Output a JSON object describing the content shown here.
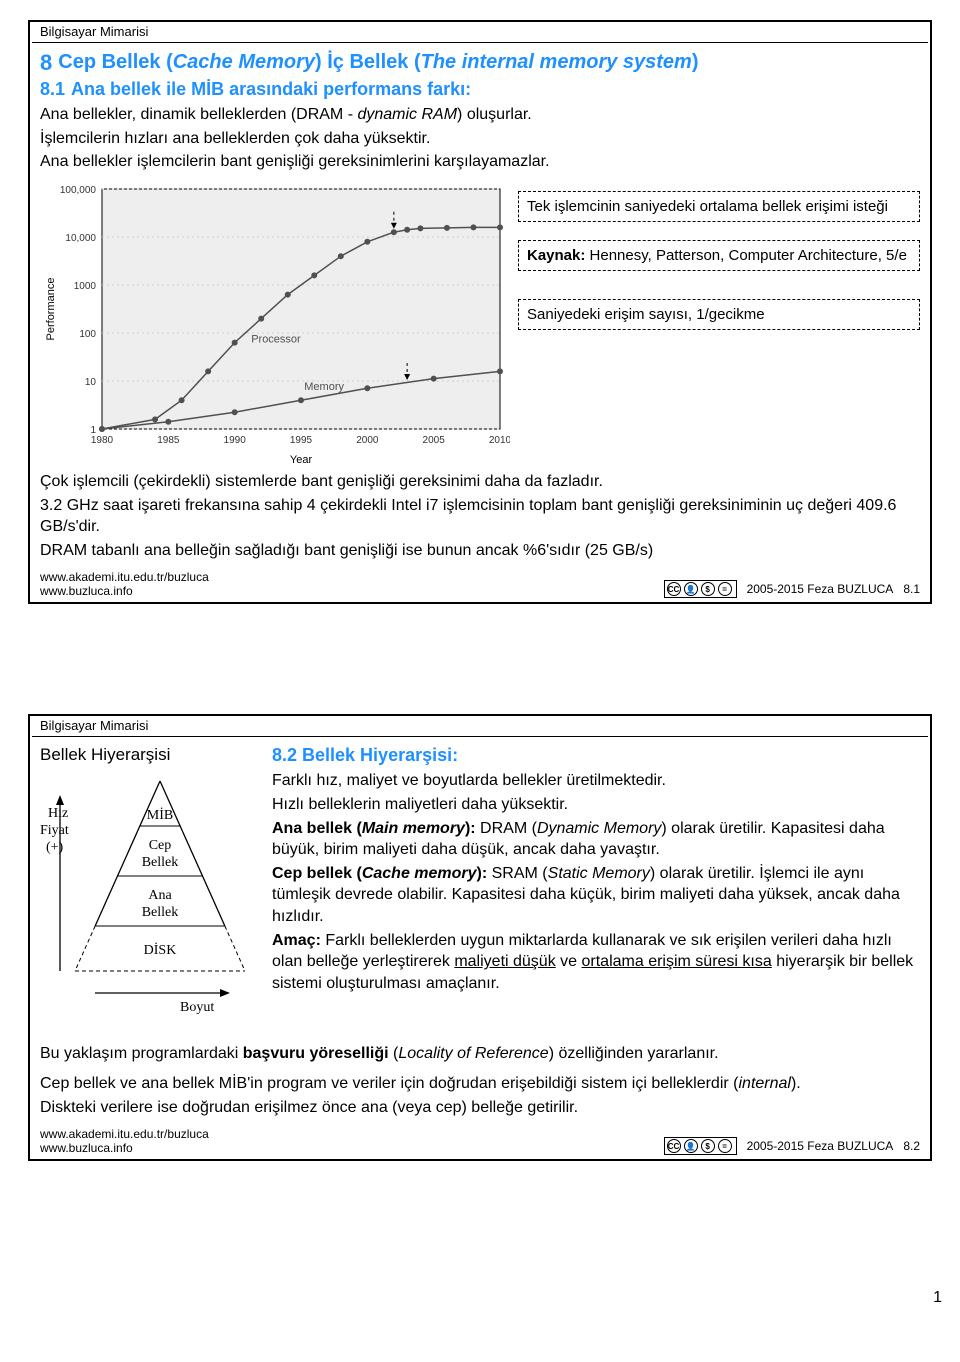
{
  "slide1": {
    "header": "Bilgisayar Mimarisi",
    "title_num": "8",
    "title_text_a": "Cep Bellek (",
    "title_text_b": "Cache Memory",
    "title_text_c": ") İç Bellek (",
    "title_text_d": "The internal memory system",
    "title_text_e": ")",
    "sub_num": "8.1",
    "sub_text": "Ana bellek ile MİB arasındaki performans farkı:",
    "p1_a": "Ana bellekler, dinamik belleklerden (DRAM - ",
    "p1_b": "dynamic RAM",
    "p1_c": ") oluşurlar.",
    "p2": "İşlemcilerin hızları ana belleklerden çok daha yüksektir.",
    "p3": "Ana bellekler işlemcilerin bant genişliği gereksinimlerini karşılayamazlar.",
    "chart": {
      "ylabel": "Performance",
      "yticks": [
        "100,000",
        "10,000",
        "1000",
        "100",
        "10",
        "1"
      ],
      "yvals_log": [
        5,
        4,
        3,
        2,
        1,
        0
      ],
      "xlabel": "Year",
      "xticks": [
        "1980",
        "1985",
        "1990",
        "1995",
        "2000",
        "2005",
        "2010"
      ],
      "xvals": [
        1980,
        1985,
        1990,
        1995,
        2000,
        2005,
        2010
      ],
      "label_proc": "Processor",
      "label_mem": "Memory",
      "colors": {
        "bg": "#eeeeee",
        "grid": "#d0d0d0",
        "axis": "#000000",
        "proc": "#505050",
        "mem": "#505050",
        "ticktext": "#333333"
      },
      "fontsize_axis": 10,
      "proc_pts": [
        [
          1980,
          0
        ],
        [
          1984,
          0.2
        ],
        [
          1986,
          0.6
        ],
        [
          1988,
          1.2
        ],
        [
          1990,
          1.8
        ],
        [
          1992,
          2.3
        ],
        [
          1994,
          2.8
        ],
        [
          1996,
          3.2
        ],
        [
          1998,
          3.6
        ],
        [
          2000,
          3.9
        ],
        [
          2002,
          4.1
        ],
        [
          2003,
          4.15
        ],
        [
          2004,
          4.18
        ],
        [
          2006,
          4.19
        ],
        [
          2008,
          4.2
        ],
        [
          2010,
          4.2
        ]
      ],
      "mem_pts": [
        [
          1980,
          0
        ],
        [
          1985,
          0.15
        ],
        [
          1990,
          0.35
        ],
        [
          1995,
          0.6
        ],
        [
          2000,
          0.85
        ],
        [
          2005,
          1.05
        ],
        [
          2010,
          1.2
        ]
      ]
    },
    "callout1": "Tek işlemcinin saniyedeki ortalama bellek erişimi isteği",
    "callout2_a": "Kaynak:",
    "callout2_b": " Hennesy, Patterson, Computer Architecture, 5/e",
    "callout3": "Saniyedeki erişim sayısı, 1/gecikme",
    "after1": "Çok işlemcili (çekirdekli) sistemlerde bant genişliği gereksinimi daha da  fazladır.",
    "after2": "3.2 GHz saat işareti frekansına sahip 4 çekirdekli Intel i7 işlemcisinin toplam bant genişliği gereksiniminin uç değeri 409.6 GB/s'dir.",
    "after3": "DRAM tabanlı ana belleğin sağladığı bant genişliği ise bunun ancak %6'sıdır (25 GB/s)",
    "url1": "www.akademi.itu.edu.tr/buzluca",
    "url2": "www.buzluca.info",
    "copyright": "2005-2015  Feza BUZLUCA",
    "pagenum": "8.1"
  },
  "slide2": {
    "header": "Bilgisayar Mimarisi",
    "pyr_title": "Bellek Hiyerarşisi",
    "pyr_left_hiz": "Hız",
    "pyr_left_fiyat": "Fiyat",
    "pyr_left_plus": "(+)",
    "pyr_lvl1": "MİB",
    "pyr_lvl2a": "Cep",
    "pyr_lvl2b": "Bellek",
    "pyr_lvl3a": "Ana",
    "pyr_lvl3b": "Bellek",
    "pyr_lvl4": "DİSK",
    "pyr_boyut": "Boyut",
    "heading": "8.2 Bellek Hiyerarşisi:",
    "t1": "Farklı hız, maliyet ve boyutlarda bellekler üretilmektedir.",
    "t2": "Hızlı belleklerin maliyetleri daha yüksektir.",
    "t3_a": "Ana bellek (",
    "t3_b": "Main memory",
    "t3_c": "):",
    "t3_d": " DRAM (",
    "t3_e": "Dynamic Memory",
    "t3_f": ") olarak üretilir. Kapasitesi daha büyük, birim maliyeti daha düşük, ancak daha yavaştır.",
    "t4_a": "Cep bellek (",
    "t4_b": "Cache memory",
    "t4_c": "):",
    "t4_d": " SRAM (",
    "t4_e": "Static Memory",
    "t4_f": ") olarak üretilir. İşlemci ile aynı tümleşik devrede olabilir. Kapasitesi daha küçük, birim maliyeti daha yüksek, ancak daha hızlıdır.",
    "t5_a": "Amaç:",
    "t5_b": " Farklı belleklerden uygun miktarlarda kullanarak ve sık erişilen verileri daha hızlı olan belleğe yerleştirerek ",
    "t5_c": "maliyeti düşük",
    "t5_d": " ve ",
    "t5_e": "ortalama erişim süresi kısa",
    "t5_f": " hiyerarşik bir bellek sistemi oluşturulması amaçlanır.",
    "t6_a": "Bu yaklaşım programlardaki ",
    "t6_b": "başvuru yöreselliği",
    "t6_c": " (",
    "t6_d": "Locality of Reference",
    "t6_e": ") özelliğinden yararlanır.",
    "t7_a": "Cep bellek ve ana bellek MİB'in program ve veriler için doğrudan erişebildiği sistem içi belleklerdir (",
    "t7_b": "internal",
    "t7_c": ").",
    "t8": "Diskteki verilere ise doğrudan erişilmez önce ana (veya cep) belleğe getirilir.",
    "url1": "www.akademi.itu.edu.tr/buzluca",
    "url2": "www.buzluca.info",
    "copyright": "2005-2015  Feza BUZLUCA",
    "pagenum": "8.2"
  },
  "page_corner": "1",
  "cc": {
    "by": "BY",
    "nc": "NC",
    "nd": "ND",
    "cc": "CC"
  }
}
